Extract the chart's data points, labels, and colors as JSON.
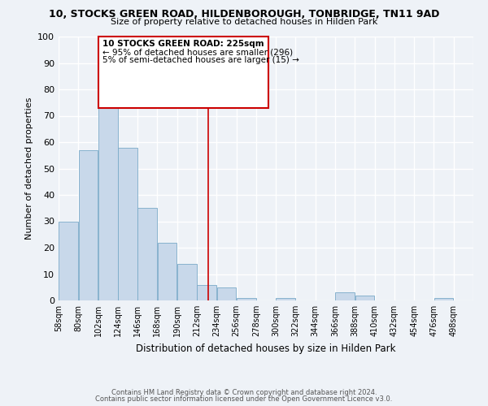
{
  "title": "10, STOCKS GREEN ROAD, HILDENBOROUGH, TONBRIDGE, TN11 9AD",
  "subtitle": "Size of property relative to detached houses in Hilden Park",
  "xlabel": "Distribution of detached houses by size in Hilden Park",
  "ylabel": "Number of detached properties",
  "bar_color": "#c8d8ea",
  "bar_edge_color": "#7aaac8",
  "bg_color": "#eef2f7",
  "grid_color": "#ffffff",
  "bin_labels": [
    "58sqm",
    "80sqm",
    "102sqm",
    "124sqm",
    "146sqm",
    "168sqm",
    "190sqm",
    "212sqm",
    "234sqm",
    "256sqm",
    "278sqm",
    "300sqm",
    "322sqm",
    "344sqm",
    "366sqm",
    "388sqm",
    "410sqm",
    "432sqm",
    "454sqm",
    "476sqm",
    "498sqm"
  ],
  "bin_edges": [
    58,
    80,
    102,
    124,
    146,
    168,
    190,
    212,
    234,
    256,
    278,
    300,
    322,
    344,
    366,
    388,
    410,
    432,
    454,
    476,
    498
  ],
  "bar_heights": [
    30,
    57,
    80,
    58,
    35,
    22,
    14,
    6,
    5,
    1,
    0,
    1,
    0,
    0,
    3,
    2,
    0,
    0,
    0,
    1,
    0
  ],
  "vline_x": 225,
  "vline_color": "#cc0000",
  "ylim": [
    0,
    100
  ],
  "yticks": [
    0,
    10,
    20,
    30,
    40,
    50,
    60,
    70,
    80,
    90,
    100
  ],
  "annotation_title": "10 STOCKS GREEN ROAD: 225sqm",
  "annotation_line1": "← 95% of detached houses are smaller (296)",
  "annotation_line2": "5% of semi-detached houses are larger (15) →",
  "footer1": "Contains HM Land Registry data © Crown copyright and database right 2024.",
  "footer2": "Contains public sector information licensed under the Open Government Licence v3.0."
}
